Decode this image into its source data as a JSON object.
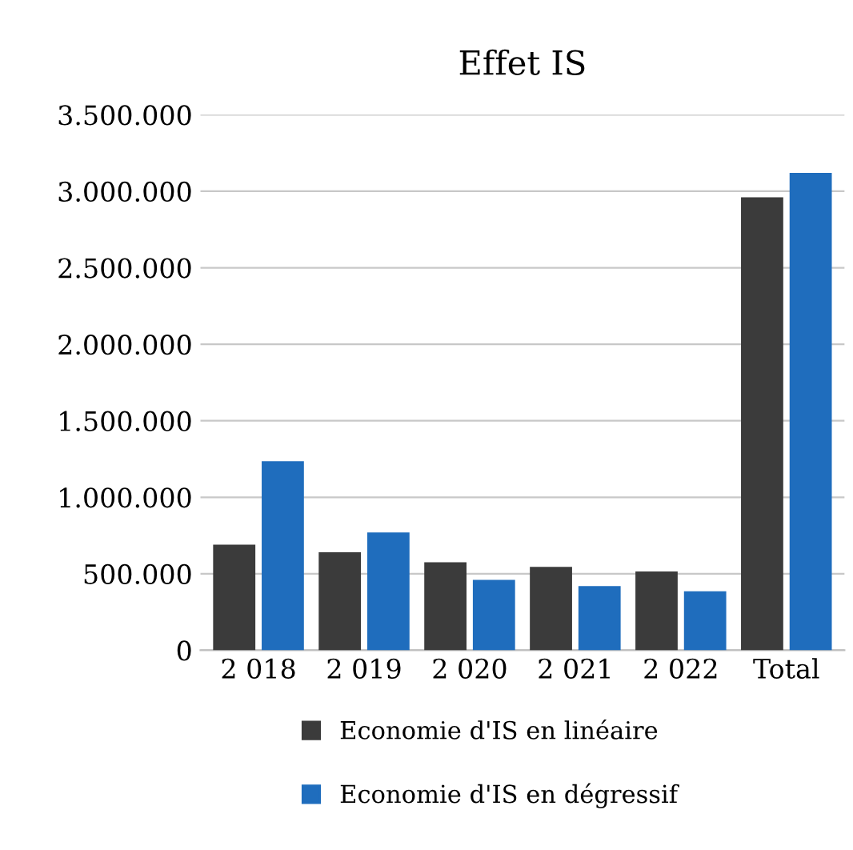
{
  "chart_data": {
    "type": "bar",
    "title": "Effet IS",
    "categories": [
      "2 018",
      "2 019",
      "2 020",
      "2 021",
      "2 022",
      "Total"
    ],
    "series": [
      {
        "name": "Economie d'IS en linéaire",
        "color": "#3b3b3b",
        "values": [
          690000,
          640000,
          575000,
          545000,
          515000,
          2960000
        ]
      },
      {
        "name": "Economie d'IS en dégressif",
        "color": "#1f6dbd",
        "values": [
          1235000,
          770000,
          460000,
          420000,
          385000,
          3120000
        ]
      }
    ],
    "ylim": [
      0,
      3500000
    ],
    "yticks": [
      {
        "value": 0,
        "label": "0"
      },
      {
        "value": 500000,
        "label": "500.000"
      },
      {
        "value": 1000000,
        "label": "1.000.000"
      },
      {
        "value": 1500000,
        "label": "1.500.000"
      },
      {
        "value": 2000000,
        "label": "2.000.000"
      },
      {
        "value": 2500000,
        "label": "2.500.000"
      },
      {
        "value": 3000000,
        "label": "3.000.000"
      },
      {
        "value": 3500000,
        "label": "3.500.000"
      }
    ],
    "grid": "y",
    "legend": "bottom"
  }
}
